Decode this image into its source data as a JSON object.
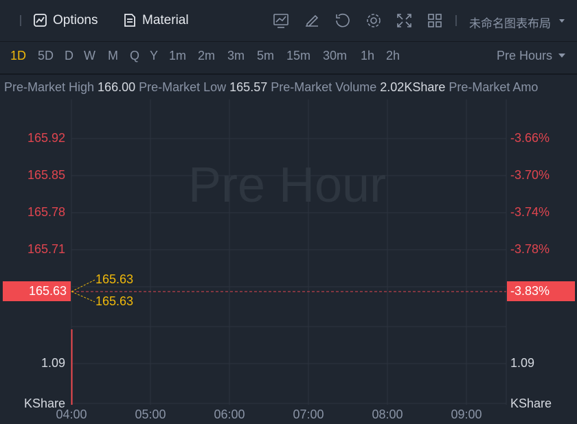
{
  "toolbar": {
    "items": [
      "Options",
      "Material"
    ],
    "layout_name": "未命名图表布局"
  },
  "timeframes": {
    "items": [
      "1D",
      "5D",
      "D",
      "W",
      "M",
      "Q",
      "Y",
      "1m",
      "2m",
      "3m",
      "5m",
      "15m",
      "30m",
      "1h",
      "2h"
    ],
    "session": "Pre Hours"
  },
  "info_bar": [
    {
      "label": "Pre-Market High",
      "value": "166.00"
    },
    {
      "label": "Pre-Market Low",
      "value": "165.57"
    },
    {
      "label": "Pre-Market Volume",
      "value": "2.02KShare"
    },
    {
      "label": "Pre-Market Amo"
    }
  ],
  "watermark": "Pre Hour",
  "price_axis": [
    "165.92",
    "165.85",
    "165.78",
    "165.71"
  ],
  "percent_axis": [
    "-3.66%",
    "-3.70%",
    "-3.74%",
    "-3.78%"
  ],
  "last_price": "165.63",
  "last_change": "-3.83%",
  "price_tags": [
    "165.63",
    "165.63"
  ],
  "volume_axis": {
    "left": "1.09",
    "right": "1.09",
    "unit_left": "KShare",
    "unit_right": "KShare"
  },
  "time_axis": [
    "04:00",
    "05:00",
    "06:00",
    "07:00",
    "08:00",
    "09:00"
  ]
}
